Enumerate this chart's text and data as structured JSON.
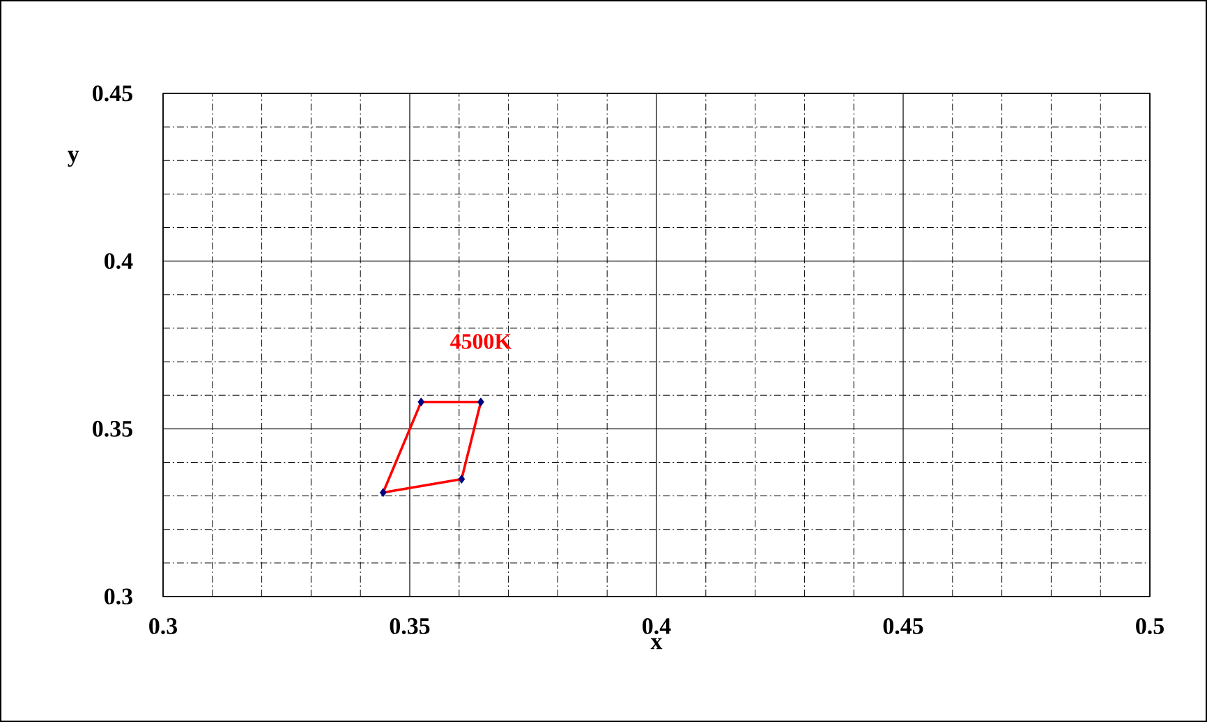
{
  "chart_data": {
    "type": "line",
    "xlabel": "x",
    "ylabel": "y",
    "xlim": [
      0.3,
      0.5
    ],
    "ylim": [
      0.3,
      0.45
    ],
    "xticks": [
      0.3,
      0.35,
      0.4,
      0.45,
      0.5
    ],
    "yticks": [
      0.3,
      0.35,
      0.4,
      0.45
    ],
    "grid": true,
    "series": [
      {
        "color": "#ff0000",
        "marker": "none",
        "x": [
          0.3446,
          0.3523
        ],
        "values": [
          0.331,
          0.358
        ]
      },
      {
        "type": "line",
        "color": "#ff0000",
        "marker": "none",
        "x": [
          0.3523,
          0.3644
        ],
        "values": [
          0.358,
          0.358
        ]
      },
      {
        "type": "line",
        "color": "#ff0000",
        "marker": "none",
        "x": [
          0.3605,
          0.3644
        ],
        "values": [
          0.335,
          0.358
        ]
      },
      {
        "type": "line",
        "color": "#ff0000",
        "marker": "none",
        "x": [
          0.3446,
          0.3605
        ],
        "values": [
          0.331,
          0.335
        ]
      },
      {
        "type": "scatter",
        "color": "#000080",
        "marker": "diamond",
        "x": [
          0.3446,
          0.3523,
          0.3644,
          0.3605
        ],
        "values": [
          0.331,
          0.358,
          0.358,
          0.335
        ]
      }
    ],
    "annotations": [
      "4500K"
    ]
  }
}
